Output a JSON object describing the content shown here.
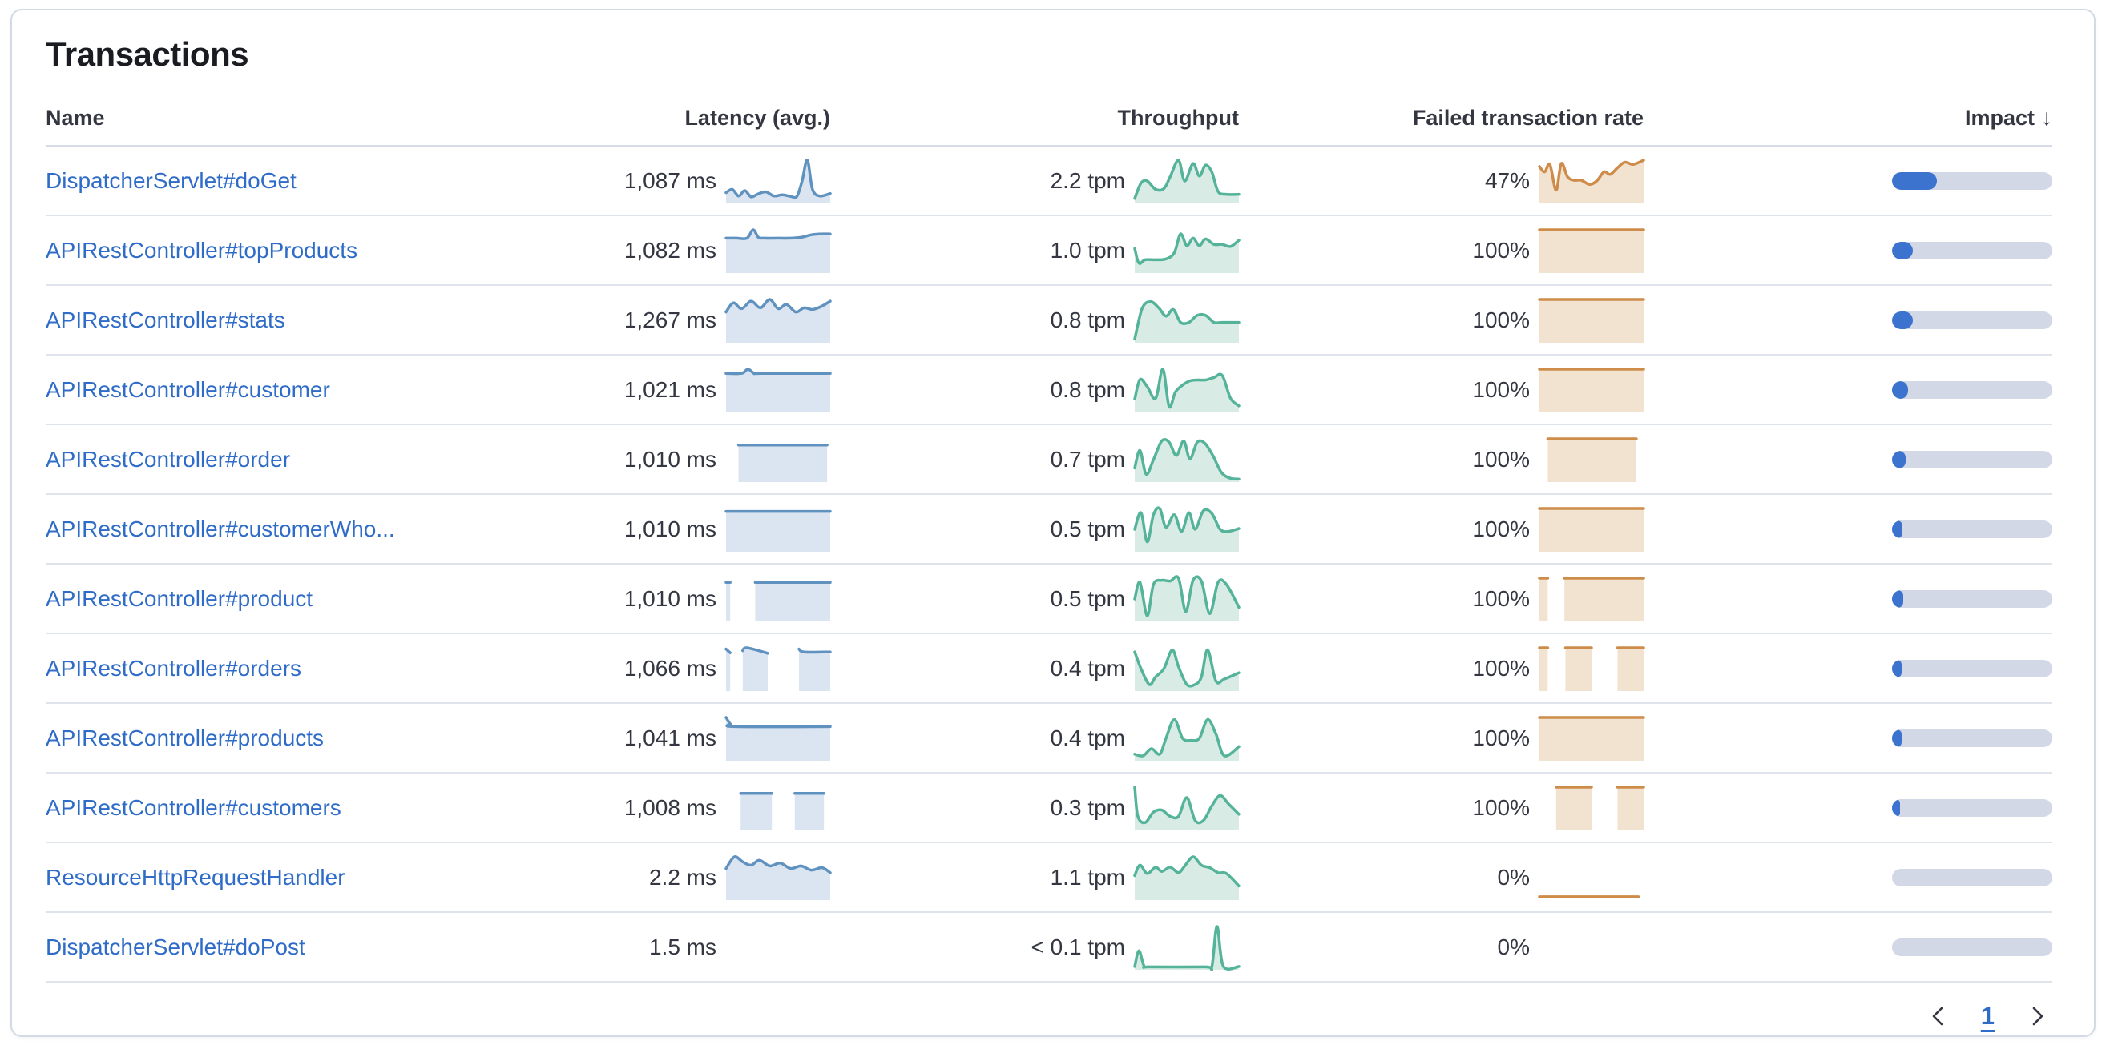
{
  "panel": {
    "title": "Transactions"
  },
  "colors": {
    "link_blue": "#2f6cc8",
    "text": "#343741",
    "divider": "#dfe3ec",
    "latency_line": "#6092c0",
    "latency_fill": "#dbe4f1",
    "throughput_line": "#54b399",
    "throughput_fill": "#d8ece5",
    "failed_line": "#ce8c4a",
    "failed_fill": "#f2e2d0",
    "impact_fill": "#3b73ce",
    "impact_track": "#d2d8e5"
  },
  "icons": {
    "sort_desc": "↓"
  },
  "table": {
    "columns": [
      {
        "id": "name",
        "label": "Name"
      },
      {
        "id": "latency",
        "label": "Latency (avg.)"
      },
      {
        "id": "throughput",
        "label": "Throughput"
      },
      {
        "id": "failed",
        "label": "Failed transaction rate"
      },
      {
        "id": "impact",
        "label": "Impact",
        "sorted": "desc"
      }
    ],
    "rows": [
      {
        "name": "DispatcherServlet#doGet",
        "latency": "1,087 ms",
        "throughput": "2.2 tpm",
        "failed_rate": "47%",
        "impact_pct": 28,
        "latency_spark": [
          {
            "x": [
              0,
              0.06,
              0.12,
              0.18,
              0.24,
              0.3,
              0.38,
              0.46,
              0.54,
              0.62,
              0.68,
              0.73,
              0.78,
              0.83,
              0.9,
              1
            ],
            "y": [
              0.22,
              0.3,
              0.14,
              0.27,
              0.12,
              0.18,
              0.24,
              0.14,
              0.17,
              0.13,
              0.13,
              0.5,
              1,
              0.3,
              0.14,
              0.2
            ]
          }
        ],
        "throughput_spark": [
          {
            "x": [
              0,
              0.06,
              0.12,
              0.2,
              0.28,
              0.34,
              0.42,
              0.48,
              0.56,
              0.62,
              0.68,
              0.74,
              0.8,
              0.88,
              1
            ],
            "y": [
              0.08,
              0.45,
              0.5,
              0.3,
              0.32,
              0.6,
              1,
              0.5,
              0.92,
              0.62,
              0.88,
              0.72,
              0.25,
              0.18,
              0.18
            ]
          }
        ],
        "failed_spark": [
          {
            "x": [
              0,
              0.05,
              0.1,
              0.16,
              0.21,
              0.27,
              0.33,
              0.4,
              0.48,
              0.55,
              0.62,
              0.68,
              0.75,
              0.82,
              0.9,
              1
            ],
            "y": [
              0.85,
              0.72,
              0.9,
              0.28,
              0.92,
              0.6,
              0.52,
              0.52,
              0.42,
              0.5,
              0.72,
              0.66,
              0.82,
              0.95,
              0.9,
              1
            ]
          }
        ]
      },
      {
        "name": "APIRestController#topProducts",
        "latency": "1,082 ms",
        "throughput": "1.0 tpm",
        "failed_rate": "100%",
        "impact_pct": 13,
        "latency_spark": [
          {
            "x": [
              0,
              0.1,
              0.2,
              0.26,
              0.31,
              0.36,
              0.5,
              0.62,
              0.72,
              0.82,
              0.9,
              1
            ],
            "y": [
              0.8,
              0.8,
              0.8,
              1,
              0.82,
              0.8,
              0.8,
              0.8,
              0.82,
              0.88,
              0.9,
              0.9
            ]
          }
        ],
        "throughput_spark": [
          {
            "x": [
              0,
              0.04,
              0.1,
              0.2,
              0.3,
              0.38,
              0.44,
              0.5,
              0.56,
              0.62,
              0.68,
              0.76,
              0.84,
              0.92,
              1
            ],
            "y": [
              0.55,
              0.2,
              0.28,
              0.28,
              0.3,
              0.45,
              0.9,
              0.62,
              0.8,
              0.62,
              0.78,
              0.65,
              0.65,
              0.6,
              0.75
            ]
          }
        ],
        "failed_spark": [
          {
            "x": [
              0,
              1
            ],
            "y": [
              1,
              1
            ]
          }
        ]
      },
      {
        "name": "APIRestController#stats",
        "latency": "1,267 ms",
        "throughput": "0.8 tpm",
        "failed_rate": "100%",
        "impact_pct": 13,
        "latency_spark": [
          {
            "x": [
              0,
              0.07,
              0.15,
              0.24,
              0.33,
              0.42,
              0.5,
              0.58,
              0.67,
              0.75,
              0.83,
              0.92,
              1
            ],
            "y": [
              0.7,
              0.92,
              0.78,
              0.96,
              0.8,
              1,
              0.78,
              0.88,
              0.7,
              0.8,
              0.76,
              0.84,
              0.96
            ]
          }
        ],
        "throughput_spark": [
          {
            "x": [
              0,
              0.07,
              0.15,
              0.23,
              0.3,
              0.37,
              0.44,
              0.52,
              0.6,
              0.68,
              0.76,
              0.84,
              1
            ],
            "y": [
              0.05,
              0.78,
              0.95,
              0.8,
              0.6,
              0.76,
              0.45,
              0.45,
              0.62,
              0.62,
              0.45,
              0.45,
              0.45
            ]
          }
        ],
        "failed_spark": [
          {
            "x": [
              0,
              1
            ],
            "y": [
              1,
              1
            ]
          }
        ]
      },
      {
        "name": "APIRestController#customer",
        "latency": "1,021 ms",
        "throughput": "0.8 tpm",
        "failed_rate": "100%",
        "impact_pct": 10,
        "latency_spark": [
          {
            "x": [
              0,
              0.15,
              0.21,
              0.27,
              0.34,
              1
            ],
            "y": [
              0.9,
              0.9,
              1,
              0.9,
              0.9,
              0.9
            ]
          }
        ],
        "throughput_spark": [
          {
            "x": [
              0,
              0.05,
              0.12,
              0.2,
              0.27,
              0.33,
              0.39,
              0.46,
              0.53,
              0.6,
              0.68,
              0.76,
              0.84,
              0.92,
              1
            ],
            "y": [
              0.28,
              0.75,
              0.58,
              0.3,
              1,
              0.1,
              0.45,
              0.62,
              0.72,
              0.74,
              0.74,
              0.8,
              0.85,
              0.3,
              0.12
            ]
          }
        ],
        "failed_spark": [
          {
            "x": [
              0,
              1
            ],
            "y": [
              1,
              1
            ]
          }
        ]
      },
      {
        "name": "APIRestController#order",
        "latency": "1,010 ms",
        "throughput": "0.7 tpm",
        "failed_rate": "100%",
        "impact_pct": 8.5,
        "latency_spark": [
          {
            "x": [
              0.12,
              0.97
            ],
            "y": [
              0.85,
              0.85
            ]
          }
        ],
        "throughput_spark": [
          {
            "x": [
              0,
              0.05,
              0.11,
              0.18,
              0.26,
              0.33,
              0.4,
              0.47,
              0.53,
              0.6,
              0.67,
              0.75,
              0.83,
              0.91,
              1
            ],
            "y": [
              0.3,
              0.72,
              0.15,
              0.5,
              0.95,
              0.92,
              0.6,
              0.95,
              0.52,
              0.92,
              0.9,
              0.6,
              0.2,
              0.06,
              0.03
            ]
          }
        ],
        "failed_spark": [
          {
            "x": [
              0.08,
              0.93
            ],
            "y": [
              1,
              1
            ]
          }
        ]
      },
      {
        "name": "APIRestController#customerWho...",
        "latency": "1,010 ms",
        "throughput": "0.5 tpm",
        "failed_rate": "100%",
        "impact_pct": 6.5,
        "latency_spark": [
          {
            "x": [
              0,
              1
            ],
            "y": [
              0.93,
              0.93
            ]
          }
        ],
        "throughput_spark": [
          {
            "x": [
              0,
              0.06,
              0.12,
              0.18,
              0.24,
              0.3,
              0.38,
              0.45,
              0.52,
              0.58,
              0.66,
              0.74,
              0.82,
              0.9,
              1
            ],
            "y": [
              0.5,
              0.9,
              0.2,
              0.85,
              1,
              0.55,
              0.85,
              0.45,
              0.9,
              0.5,
              0.95,
              0.88,
              0.5,
              0.45,
              0.52
            ]
          }
        ],
        "failed_spark": [
          {
            "x": [
              0,
              1
            ],
            "y": [
              1,
              1
            ]
          }
        ]
      },
      {
        "name": "APIRestController#product",
        "latency": "1,010 ms",
        "throughput": "0.5 tpm",
        "failed_rate": "100%",
        "impact_pct": 7,
        "latency_spark": [
          {
            "x": [
              0,
              0.04
            ],
            "y": [
              0.9,
              0.9
            ]
          },
          {
            "x": [
              0.28,
              1
            ],
            "y": [
              0.9,
              0.9
            ]
          }
        ],
        "throughput_spark": [
          {
            "x": [
              0,
              0.05,
              0.12,
              0.18,
              0.26,
              0.34,
              0.42,
              0.49,
              0.56,
              0.64,
              0.72,
              0.8,
              0.88,
              1
            ],
            "y": [
              0.5,
              0.9,
              0.1,
              0.85,
              0.95,
              0.93,
              1,
              0.2,
              0.95,
              0.93,
              0.15,
              0.9,
              0.85,
              0.3
            ]
          }
        ],
        "failed_spark": [
          {
            "x": [
              0,
              0.08
            ],
            "y": [
              1,
              1
            ]
          },
          {
            "x": [
              0.24,
              1
            ],
            "y": [
              1,
              1
            ]
          }
        ]
      },
      {
        "name": "APIRestController#orders",
        "latency": "1,066 ms",
        "throughput": "0.4 tpm",
        "failed_rate": "100%",
        "impact_pct": 6,
        "latency_spark": [
          {
            "x": [
              0,
              0.04
            ],
            "y": [
              0.97,
              0.88
            ]
          },
          {
            "x": [
              0.16,
              0.2,
              0.4
            ],
            "y": [
              0.93,
              1,
              0.87
            ]
          },
          {
            "x": [
              0.7,
              0.75,
              1
            ],
            "y": [
              0.97,
              0.9,
              0.9
            ]
          }
        ],
        "throughput_spark": [
          {
            "x": [
              0,
              0.06,
              0.14,
              0.2,
              0.28,
              0.36,
              0.42,
              0.5,
              0.58,
              0.64,
              0.7,
              0.78,
              0.86,
              1
            ],
            "y": [
              0.9,
              0.5,
              0.12,
              0.3,
              0.5,
              0.95,
              0.55,
              0.12,
              0.12,
              0.3,
              0.95,
              0.2,
              0.25,
              0.4
            ]
          }
        ],
        "failed_spark": [
          {
            "x": [
              0,
              0.08
            ],
            "y": [
              1,
              1
            ]
          },
          {
            "x": [
              0.25,
              0.5
            ],
            "y": [
              1,
              1
            ]
          },
          {
            "x": [
              0.75,
              1
            ],
            "y": [
              1,
              1
            ]
          }
        ]
      },
      {
        "name": "APIRestController#products",
        "latency": "1,041 ms",
        "throughput": "0.4 tpm",
        "failed_rate": "100%",
        "impact_pct": 6,
        "latency_spark": [
          {
            "x": [
              0,
              0.04,
              0.09,
              1
            ],
            "y": [
              1,
              0.85,
              0.78,
              0.78
            ]
          }
        ],
        "throughput_spark": [
          {
            "x": [
              0,
              0.08,
              0.16,
              0.24,
              0.3,
              0.38,
              0.46,
              0.54,
              0.62,
              0.7,
              0.78,
              0.86,
              1
            ],
            "y": [
              0.12,
              0.08,
              0.25,
              0.12,
              0.5,
              0.95,
              0.5,
              0.45,
              0.5,
              0.95,
              0.6,
              0.08,
              0.3
            ]
          }
        ],
        "failed_spark": [
          {
            "x": [
              0,
              1
            ],
            "y": [
              1,
              1
            ]
          }
        ]
      },
      {
        "name": "APIRestController#customers",
        "latency": "1,008 ms",
        "throughput": "0.3 tpm",
        "failed_rate": "100%",
        "impact_pct": 5,
        "latency_spark": [
          {
            "x": [
              0.14,
              0.44
            ],
            "y": [
              0.85,
              0.85
            ]
          },
          {
            "x": [
              0.66,
              0.94
            ],
            "y": [
              0.85,
              0.85
            ]
          }
        ],
        "throughput_spark": [
          {
            "x": [
              0,
              0.03,
              0.1,
              0.18,
              0.26,
              0.34,
              0.42,
              0.5,
              0.58,
              0.66,
              0.74,
              0.82,
              0.9,
              1
            ],
            "y": [
              1,
              0.3,
              0.15,
              0.4,
              0.45,
              0.3,
              0.3,
              0.75,
              0.2,
              0.2,
              0.55,
              0.8,
              0.6,
              0.35
            ]
          }
        ],
        "failed_spark": [
          {
            "x": [
              0.16,
              0.5
            ],
            "y": [
              1,
              1
            ]
          },
          {
            "x": [
              0.75,
              1
            ],
            "y": [
              1,
              1
            ]
          }
        ]
      },
      {
        "name": "ResourceHttpRequestHandler",
        "latency": "2.2 ms",
        "throughput": "1.1 tpm",
        "failed_rate": "0%",
        "impact_pct": 0,
        "latency_spark": [
          {
            "x": [
              0,
              0.08,
              0.16,
              0.24,
              0.32,
              0.42,
              0.52,
              0.62,
              0.72,
              0.82,
              0.92,
              1
            ],
            "y": [
              0.72,
              1,
              0.88,
              0.8,
              0.92,
              0.78,
              0.85,
              0.72,
              0.78,
              0.68,
              0.74,
              0.62
            ]
          }
        ],
        "throughput_spark": [
          {
            "x": [
              0,
              0.05,
              0.12,
              0.2,
              0.26,
              0.34,
              0.42,
              0.48,
              0.56,
              0.64,
              0.72,
              0.8,
              0.88,
              1
            ],
            "y": [
              0.55,
              0.8,
              0.6,
              0.75,
              0.65,
              0.75,
              0.62,
              0.78,
              1,
              0.8,
              0.74,
              0.62,
              0.6,
              0.3
            ]
          }
        ],
        "failed_spark": [
          {
            "x": [
              0,
              0.95
            ],
            "y": [
              0.04,
              0.04
            ],
            "fill": false
          }
        ]
      },
      {
        "name": "DispatcherServlet#doPost",
        "latency": "1.5 ms",
        "throughput": "< 0.1 tpm",
        "failed_rate": "0%",
        "impact_pct": 0,
        "latency_spark": [],
        "throughput_spark": [
          {
            "x": [
              0,
              0.04,
              0.09,
              0.14,
              0.68,
              0.74,
              0.79,
              0.85,
              1
            ],
            "y": [
              0.04,
              0.42,
              0.05,
              0.03,
              0.03,
              0.03,
              1,
              0.05,
              0.04
            ]
          }
        ],
        "failed_spark": []
      }
    ]
  },
  "pagination": {
    "current_page": "1"
  }
}
